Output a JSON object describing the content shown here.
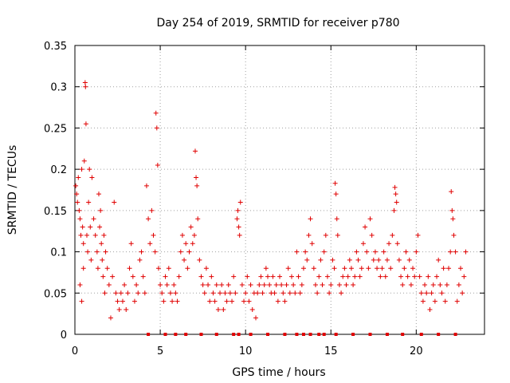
{
  "chart_data": {
    "type": "scatter",
    "title": "Day 254 of 2019, SRMTID for receiver p780",
    "xlabel": "GPS time / hours",
    "ylabel": "SRMTID / TECUs",
    "xlim": [
      0,
      24
    ],
    "ylim": [
      0,
      0.35
    ],
    "x_ticks": [
      0,
      5,
      10,
      15,
      20
    ],
    "y_ticks": [
      0,
      0.05,
      0.1,
      0.15,
      0.2,
      0.25,
      0.3,
      0.35
    ],
    "x_tick_labels": [
      "0",
      "5",
      "10",
      "15",
      "20"
    ],
    "y_tick_labels": [
      "0",
      "0.05",
      "0.1",
      "0.15",
      "0.2",
      "0.25",
      "0.3",
      "0.35"
    ],
    "grid": true,
    "marker": "+",
    "color": "#e00000",
    "baseline_markers_x": [
      4.3,
      5.3,
      5.9,
      6.5,
      7.4,
      8.3,
      9.3,
      9.6,
      10.3,
      11.3,
      12.3,
      13.0,
      13.4,
      13.8,
      14.3,
      14.6,
      15.3,
      16.3,
      17.3,
      18.3,
      19.2,
      20.3,
      21.3,
      22.3
    ],
    "series": [
      {
        "name": "SRMTID",
        "points": [
          [
            0.05,
            0.18
          ],
          [
            0.1,
            0.17
          ],
          [
            0.15,
            0.16
          ],
          [
            0.2,
            0.19
          ],
          [
            0.25,
            0.15
          ],
          [
            0.3,
            0.14
          ],
          [
            0.35,
            0.12
          ],
          [
            0.4,
            0.2
          ],
          [
            0.45,
            0.13
          ],
          [
            0.5,
            0.11
          ],
          [
            0.55,
            0.21
          ],
          [
            0.6,
            0.305
          ],
          [
            0.62,
            0.3
          ],
          [
            0.65,
            0.255
          ],
          [
            0.7,
            0.12
          ],
          [
            0.75,
            0.1
          ],
          [
            0.8,
            0.16
          ],
          [
            0.85,
            0.2
          ],
          [
            0.9,
            0.13
          ],
          [
            0.95,
            0.09
          ],
          [
            0.3,
            0.06
          ],
          [
            0.4,
            0.04
          ],
          [
            0.5,
            0.08
          ],
          [
            1.0,
            0.19
          ],
          [
            1.1,
            0.14
          ],
          [
            1.2,
            0.12
          ],
          [
            1.3,
            0.1
          ],
          [
            1.35,
            0.08
          ],
          [
            1.4,
            0.17
          ],
          [
            1.45,
            0.13
          ],
          [
            1.5,
            0.15
          ],
          [
            1.55,
            0.11
          ],
          [
            1.6,
            0.09
          ],
          [
            1.65,
            0.07
          ],
          [
            1.7,
            0.12
          ],
          [
            1.75,
            0.05
          ],
          [
            1.8,
            0.1
          ],
          [
            1.9,
            0.08
          ],
          [
            2.0,
            0.06
          ],
          [
            2.1,
            0.02
          ],
          [
            2.2,
            0.07
          ],
          [
            2.3,
            0.16
          ],
          [
            2.4,
            0.05
          ],
          [
            2.5,
            0.04
          ],
          [
            2.6,
            0.03
          ],
          [
            2.7,
            0.05
          ],
          [
            2.8,
            0.04
          ],
          [
            2.9,
            0.06
          ],
          [
            3.0,
            0.03
          ],
          [
            3.1,
            0.05
          ],
          [
            3.2,
            0.08
          ],
          [
            3.3,
            0.11
          ],
          [
            3.4,
            0.07
          ],
          [
            3.5,
            0.04
          ],
          [
            3.6,
            0.06
          ],
          [
            3.7,
            0.05
          ],
          [
            3.8,
            0.09
          ],
          [
            3.9,
            0.1
          ],
          [
            4.0,
            0.07
          ],
          [
            4.1,
            0.05
          ],
          [
            4.2,
            0.18
          ],
          [
            4.3,
            0.14
          ],
          [
            4.4,
            0.11
          ],
          [
            4.5,
            0.15
          ],
          [
            4.6,
            0.12
          ],
          [
            4.7,
            0.1
          ],
          [
            4.75,
            0.268
          ],
          [
            4.8,
            0.25
          ],
          [
            4.85,
            0.205
          ],
          [
            4.9,
            0.08
          ],
          [
            5.0,
            0.06
          ],
          [
            5.1,
            0.05
          ],
          [
            5.2,
            0.04
          ],
          [
            5.3,
            0.07
          ],
          [
            5.4,
            0.06
          ],
          [
            5.5,
            0.08
          ],
          [
            5.6,
            0.05
          ],
          [
            5.7,
            0.04
          ],
          [
            5.8,
            0.06
          ],
          [
            5.9,
            0.05
          ],
          [
            6.0,
            0.04
          ],
          [
            6.1,
            0.07
          ],
          [
            6.2,
            0.1
          ],
          [
            6.3,
            0.12
          ],
          [
            6.4,
            0.09
          ],
          [
            6.5,
            0.11
          ],
          [
            6.6,
            0.08
          ],
          [
            6.7,
            0.1
          ],
          [
            6.8,
            0.13
          ],
          [
            6.9,
            0.11
          ],
          [
            7.0,
            0.12
          ],
          [
            7.05,
            0.222
          ],
          [
            7.1,
            0.19
          ],
          [
            7.15,
            0.18
          ],
          [
            7.2,
            0.14
          ],
          [
            7.3,
            0.09
          ],
          [
            7.4,
            0.07
          ],
          [
            7.5,
            0.06
          ],
          [
            7.6,
            0.05
          ],
          [
            7.7,
            0.08
          ],
          [
            7.8,
            0.06
          ],
          [
            7.9,
            0.04
          ],
          [
            8.0,
            0.07
          ],
          [
            8.1,
            0.05
          ],
          [
            8.2,
            0.04
          ],
          [
            8.3,
            0.06
          ],
          [
            8.4,
            0.03
          ],
          [
            8.5,
            0.05
          ],
          [
            8.6,
            0.06
          ],
          [
            8.7,
            0.03
          ],
          [
            8.8,
            0.05
          ],
          [
            8.9,
            0.04
          ],
          [
            9.0,
            0.06
          ],
          [
            9.1,
            0.05
          ],
          [
            9.2,
            0.04
          ],
          [
            9.3,
            0.07
          ],
          [
            9.4,
            0.05
          ],
          [
            9.5,
            0.14
          ],
          [
            9.55,
            0.15
          ],
          [
            9.6,
            0.13
          ],
          [
            9.65,
            0.12
          ],
          [
            9.7,
            0.16
          ],
          [
            9.8,
            0.06
          ],
          [
            9.9,
            0.04
          ],
          [
            10.0,
            0.05
          ],
          [
            10.1,
            0.07
          ],
          [
            10.2,
            0.04
          ],
          [
            10.3,
            0.06
          ],
          [
            10.4,
            0.03
          ],
          [
            10.5,
            0.05
          ],
          [
            10.6,
            0.02
          ],
          [
            10.7,
            0.05
          ],
          [
            10.8,
            0.06
          ],
          [
            10.9,
            0.07
          ],
          [
            11.0,
            0.05
          ],
          [
            11.1,
            0.06
          ],
          [
            11.2,
            0.08
          ],
          [
            11.3,
            0.07
          ],
          [
            11.4,
            0.06
          ],
          [
            11.5,
            0.05
          ],
          [
            11.6,
            0.07
          ],
          [
            11.7,
            0.05
          ],
          [
            11.8,
            0.06
          ],
          [
            11.9,
            0.04
          ],
          [
            12.0,
            0.07
          ],
          [
            12.1,
            0.06
          ],
          [
            12.2,
            0.05
          ],
          [
            12.3,
            0.04
          ],
          [
            12.4,
            0.06
          ],
          [
            12.5,
            0.08
          ],
          [
            12.6,
            0.05
          ],
          [
            12.7,
            0.07
          ],
          [
            12.8,
            0.06
          ],
          [
            12.9,
            0.05
          ],
          [
            13.0,
            0.1
          ],
          [
            13.1,
            0.07
          ],
          [
            13.2,
            0.05
          ],
          [
            13.3,
            0.06
          ],
          [
            13.4,
            0.08
          ],
          [
            13.5,
            0.1
          ],
          [
            13.6,
            0.09
          ],
          [
            13.7,
            0.12
          ],
          [
            13.8,
            0.14
          ],
          [
            13.9,
            0.11
          ],
          [
            14.0,
            0.08
          ],
          [
            14.1,
            0.06
          ],
          [
            14.2,
            0.05
          ],
          [
            14.3,
            0.07
          ],
          [
            14.4,
            0.09
          ],
          [
            14.5,
            0.06
          ],
          [
            14.6,
            0.1
          ],
          [
            14.7,
            0.12
          ],
          [
            14.8,
            0.07
          ],
          [
            14.9,
            0.05
          ],
          [
            15.0,
            0.06
          ],
          [
            15.1,
            0.09
          ],
          [
            15.2,
            0.08
          ],
          [
            15.25,
            0.183
          ],
          [
            15.3,
            0.17
          ],
          [
            15.35,
            0.14
          ],
          [
            15.4,
            0.12
          ],
          [
            15.5,
            0.06
          ],
          [
            15.6,
            0.05
          ],
          [
            15.7,
            0.07
          ],
          [
            15.8,
            0.08
          ],
          [
            15.9,
            0.06
          ],
          [
            16.0,
            0.07
          ],
          [
            16.1,
            0.09
          ],
          [
            16.2,
            0.08
          ],
          [
            16.3,
            0.06
          ],
          [
            16.4,
            0.07
          ],
          [
            16.5,
            0.1
          ],
          [
            16.6,
            0.09
          ],
          [
            16.7,
            0.07
          ],
          [
            16.8,
            0.08
          ],
          [
            16.9,
            0.11
          ],
          [
            17.0,
            0.13
          ],
          [
            17.1,
            0.1
          ],
          [
            17.2,
            0.08
          ],
          [
            17.3,
            0.14
          ],
          [
            17.4,
            0.12
          ],
          [
            17.5,
            0.09
          ],
          [
            17.6,
            0.1
          ],
          [
            17.7,
            0.08
          ],
          [
            17.8,
            0.09
          ],
          [
            17.9,
            0.07
          ],
          [
            18.0,
            0.08
          ],
          [
            18.1,
            0.1
          ],
          [
            18.2,
            0.07
          ],
          [
            18.3,
            0.09
          ],
          [
            18.4,
            0.11
          ],
          [
            18.5,
            0.08
          ],
          [
            18.6,
            0.12
          ],
          [
            18.7,
            0.15
          ],
          [
            18.75,
            0.178
          ],
          [
            18.8,
            0.17
          ],
          [
            18.85,
            0.16
          ],
          [
            18.9,
            0.11
          ],
          [
            19.0,
            0.09
          ],
          [
            19.1,
            0.07
          ],
          [
            19.2,
            0.06
          ],
          [
            19.3,
            0.08
          ],
          [
            19.4,
            0.1
          ],
          [
            19.5,
            0.07
          ],
          [
            19.6,
            0.09
          ],
          [
            19.7,
            0.06
          ],
          [
            19.8,
            0.08
          ],
          [
            19.9,
            0.07
          ],
          [
            20.0,
            0.1
          ],
          [
            20.1,
            0.12
          ],
          [
            20.2,
            0.07
          ],
          [
            20.3,
            0.05
          ],
          [
            20.4,
            0.04
          ],
          [
            20.5,
            0.06
          ],
          [
            20.6,
            0.05
          ],
          [
            20.7,
            0.07
          ],
          [
            20.8,
            0.03
          ],
          [
            20.9,
            0.05
          ],
          [
            21.0,
            0.06
          ],
          [
            21.1,
            0.04
          ],
          [
            21.2,
            0.07
          ],
          [
            21.3,
            0.09
          ],
          [
            21.4,
            0.06
          ],
          [
            21.5,
            0.05
          ],
          [
            21.6,
            0.08
          ],
          [
            21.7,
            0.04
          ],
          [
            21.8,
            0.06
          ],
          [
            21.9,
            0.08
          ],
          [
            22.0,
            0.1
          ],
          [
            22.05,
            0.173
          ],
          [
            22.1,
            0.15
          ],
          [
            22.15,
            0.14
          ],
          [
            22.2,
            0.12
          ],
          [
            22.3,
            0.1
          ],
          [
            22.4,
            0.04
          ],
          [
            22.5,
            0.06
          ],
          [
            22.6,
            0.08
          ],
          [
            22.7,
            0.05
          ],
          [
            22.8,
            0.07
          ],
          [
            22.9,
            0.1
          ]
        ]
      }
    ]
  }
}
